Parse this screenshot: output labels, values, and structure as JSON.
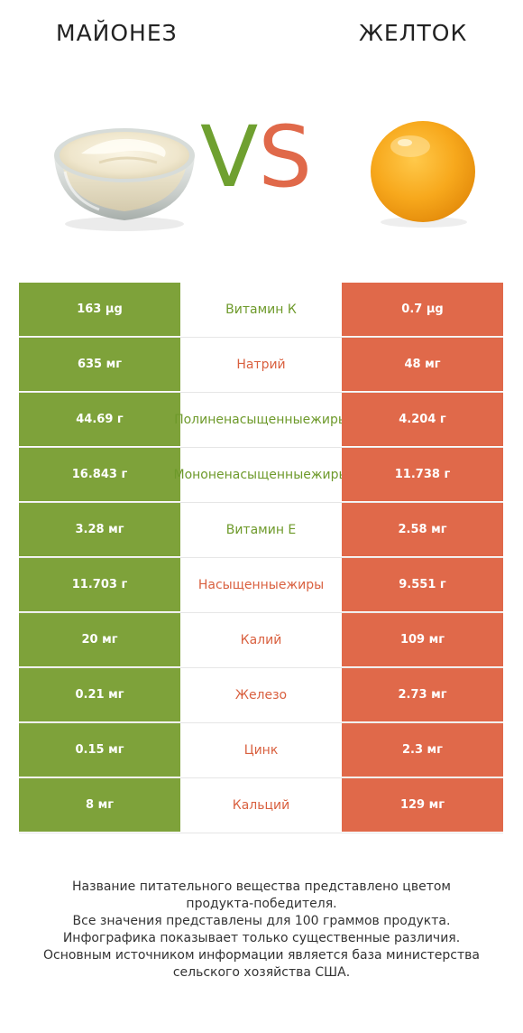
{
  "header": {
    "left_product": "МАЙОНЕЗ",
    "right_product": "ЖЕЛТОК",
    "vs_v": "V",
    "vs_s": "S"
  },
  "images": {
    "left": "mayonnaise-bowl-icon",
    "right": "egg-yolk-icon"
  },
  "colors": {
    "left_winner": "#7ea23a",
    "right_winner": "#e0694a"
  },
  "chart_data": {
    "type": "table",
    "columns": [
      "МАЙОНЕЗ",
      "",
      "ЖЕЛТОК"
    ],
    "rows": [
      {
        "nutrient": "Витамин К",
        "left": "163 µg",
        "right": "0.7 µg",
        "winner": "left"
      },
      {
        "nutrient": "Натрий",
        "left": "635 мг",
        "right": "48 мг",
        "winner": "right"
      },
      {
        "nutrient": "Полиненасыщенные жиры",
        "left": "44.69 г",
        "right": "4.204 г",
        "winner": "left"
      },
      {
        "nutrient": "Мононенасыщенные жиры",
        "left": "16.843 г",
        "right": "11.738 г",
        "winner": "left"
      },
      {
        "nutrient": "Витамин Е",
        "left": "3.28 мг",
        "right": "2.58 мг",
        "winner": "left"
      },
      {
        "nutrient": "Насыщенные жиры",
        "left": "11.703 г",
        "right": "9.551 г",
        "winner": "right"
      },
      {
        "nutrient": "Калий",
        "left": "20 мг",
        "right": "109 мг",
        "winner": "right"
      },
      {
        "nutrient": "Железо",
        "left": "0.21 мг",
        "right": "2.73 мг",
        "winner": "right"
      },
      {
        "nutrient": "Цинк",
        "left": "0.15 мг",
        "right": "2.3 мг",
        "winner": "right"
      },
      {
        "nutrient": "Кальций",
        "left": "8 мг",
        "right": "129 мг",
        "winner": "right"
      }
    ]
  },
  "footer": {
    "lines": [
      "Название питательного вещества представлено цветом",
      "продукта-победителя.",
      "Все значения представлены для 100 граммов продукта.",
      "Инфографика показывает только существенные различия.",
      "Основным источником информации является база министерства",
      "сельского хозяйства США."
    ]
  }
}
